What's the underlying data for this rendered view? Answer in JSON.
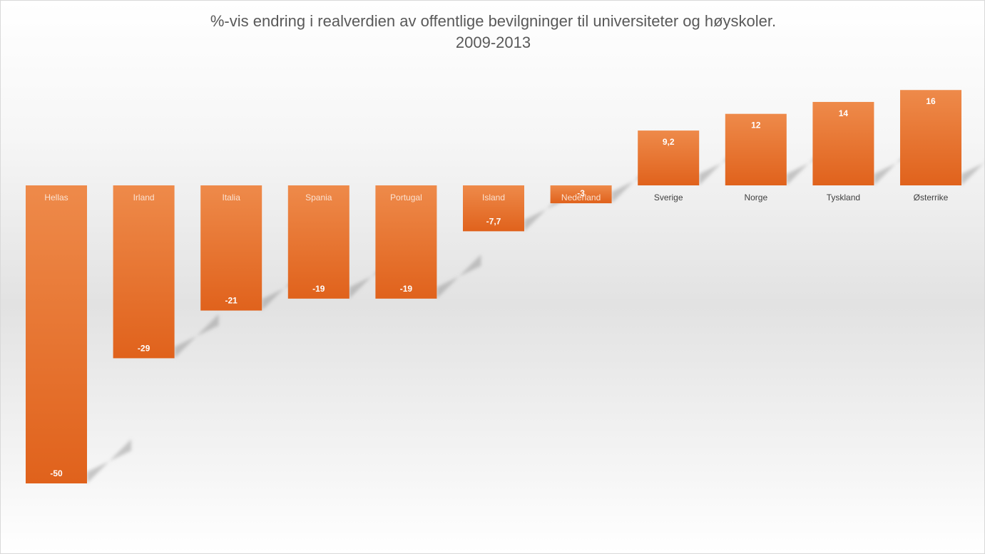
{
  "chart_data": {
    "type": "bar",
    "title_line1": "%-vis endring i realverdien av offentlige bevilgninger til universiteter og høyskoler.",
    "title_line2": "2009-2013",
    "categories": [
      "Hellas",
      "Irland",
      "Italia",
      "Spania",
      "Portugal",
      "Island",
      "Nederland",
      "Sverige",
      "Norge",
      "Tyskland",
      "Østerrike"
    ],
    "values": [
      -50,
      -29,
      -21,
      -19,
      -19,
      -7.7,
      -3,
      9.2,
      12,
      14,
      16
    ],
    "value_labels": [
      "-50",
      "-29",
      "-21",
      "-19",
      "-19",
      "-7,7",
      "-3",
      "9,2",
      "12",
      "14",
      "16"
    ],
    "xlabel": "",
    "ylabel": "",
    "grid": false,
    "legend": "none",
    "bar_color": "#e8702a"
  }
}
